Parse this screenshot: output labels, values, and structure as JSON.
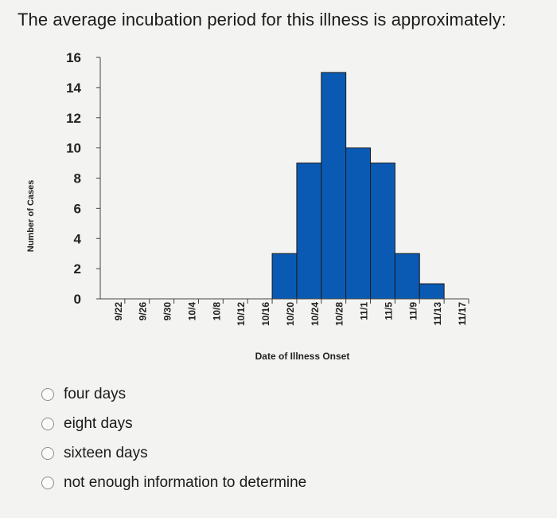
{
  "question": "The average incubation period for this illness is approximately:",
  "options": [
    {
      "label": "four days"
    },
    {
      "label": "eight days"
    },
    {
      "label": "sixteen days"
    },
    {
      "label": "not enough information to determine"
    }
  ],
  "chart_data": {
    "type": "bar",
    "title": "",
    "xlabel": "Date of Illness Onset",
    "ylabel": "Number of Cases",
    "ylim": [
      0,
      16
    ],
    "yticks": [
      0,
      2,
      4,
      6,
      8,
      10,
      12,
      14,
      16
    ],
    "categories": [
      "9/22",
      "9/26",
      "9/30",
      "10/4",
      "10/8",
      "10/12",
      "10/16",
      "10/20",
      "10/24",
      "10/28",
      "11/1",
      "11/5",
      "11/9",
      "11/13",
      "11/17"
    ],
    "values": [
      0,
      0,
      0,
      0,
      0,
      0,
      0,
      3,
      9,
      15,
      10,
      9,
      3,
      1,
      0
    ],
    "bar_color": "#0a5ab4",
    "bar_edge_color": "#1b1b1b"
  }
}
